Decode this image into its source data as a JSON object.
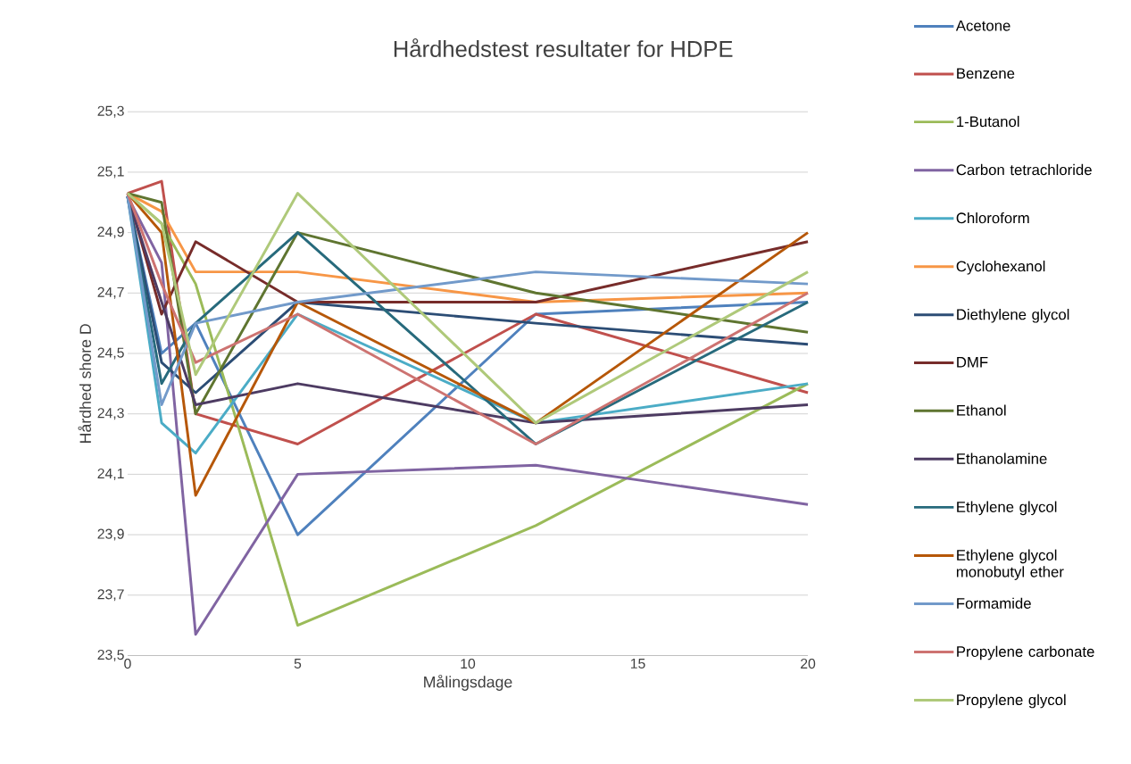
{
  "chart_data": {
    "type": "line",
    "title": "Hårdhedstest resultater for HDPE",
    "xlabel": "Målingsdage",
    "ylabel": "Hårdhed shore D",
    "x": [
      0,
      1,
      2,
      5,
      12,
      20
    ],
    "xlim": [
      0,
      20
    ],
    "xticks": [
      0,
      5,
      10,
      15,
      20
    ],
    "ylim": [
      23.5,
      25.3
    ],
    "yticks": [
      {
        "value": 23.5,
        "label": "23,5"
      },
      {
        "value": 23.7,
        "label": "23,7"
      },
      {
        "value": 23.9,
        "label": "23,9"
      },
      {
        "value": 24.1,
        "label": "24,1"
      },
      {
        "value": 24.3,
        "label": "24,3"
      },
      {
        "value": 24.5,
        "label": "24,5"
      },
      {
        "value": 24.7,
        "label": "24,7"
      },
      {
        "value": 24.9,
        "label": "24,9"
      },
      {
        "value": 25.1,
        "label": "25,1"
      },
      {
        "value": 25.3,
        "label": "25,3"
      }
    ],
    "grid": "y",
    "legend": "right",
    "line_style": "solid",
    "series": [
      {
        "name": "Acetone",
        "color": "#4f81bd",
        "values": [
          25.02,
          24.5,
          24.6,
          23.9,
          24.63,
          24.67
        ]
      },
      {
        "name": "Benzene",
        "color": "#c0504d",
        "values": [
          25.03,
          25.07,
          24.3,
          24.2,
          24.63,
          24.37
        ]
      },
      {
        "name": "1-Butanol",
        "color": "#9bbb59",
        "values": [
          25.03,
          24.93,
          24.73,
          23.6,
          23.93,
          24.4
        ]
      },
      {
        "name": "Carbon tetrachloride",
        "color": "#8064a2",
        "values": [
          25.02,
          24.8,
          23.57,
          24.1,
          24.13,
          24.0
        ]
      },
      {
        "name": "Chloroform",
        "color": "#4bacc6",
        "values": [
          25.02,
          24.27,
          24.17,
          24.63,
          24.27,
          24.4
        ]
      },
      {
        "name": "Cyclohexanol",
        "color": "#f79646",
        "values": [
          25.03,
          24.97,
          24.77,
          24.77,
          24.67,
          24.7
        ]
      },
      {
        "name": "Diethylene glycol",
        "color": "#2c4d75",
        "values": [
          25.02,
          24.47,
          24.37,
          24.67,
          24.6,
          24.53
        ]
      },
      {
        "name": "DMF",
        "color": "#772c2a",
        "values": [
          25.03,
          24.63,
          24.87,
          24.67,
          24.67,
          24.87
        ]
      },
      {
        "name": "Ethanol",
        "color": "#5f7530",
        "values": [
          25.03,
          25.0,
          24.3,
          24.9,
          24.7,
          24.57
        ]
      },
      {
        "name": "Ethanolamine",
        "color": "#4d3b62",
        "values": [
          25.02,
          24.67,
          24.33,
          24.4,
          24.27,
          24.33
        ]
      },
      {
        "name": "Ethylene glycol",
        "color": "#276a7c",
        "values": [
          25.02,
          24.4,
          24.6,
          24.9,
          24.2,
          24.67
        ]
      },
      {
        "name": "Ethylene glycol monobutyl ether",
        "color": "#b65708",
        "values": [
          25.03,
          24.9,
          24.03,
          24.67,
          24.27,
          24.9
        ]
      },
      {
        "name": "Formamide",
        "color": "#729aca",
        "values": [
          25.02,
          24.33,
          24.6,
          24.67,
          24.77,
          24.73
        ]
      },
      {
        "name": "Propylene carbonate",
        "color": "#cd7371",
        "values": [
          25.03,
          24.73,
          24.47,
          24.63,
          24.2,
          24.7
        ]
      },
      {
        "name": "Propylene glycol",
        "color": "#afc97a",
        "values": [
          25.03,
          24.93,
          24.43,
          25.03,
          24.27,
          24.77
        ]
      }
    ]
  }
}
